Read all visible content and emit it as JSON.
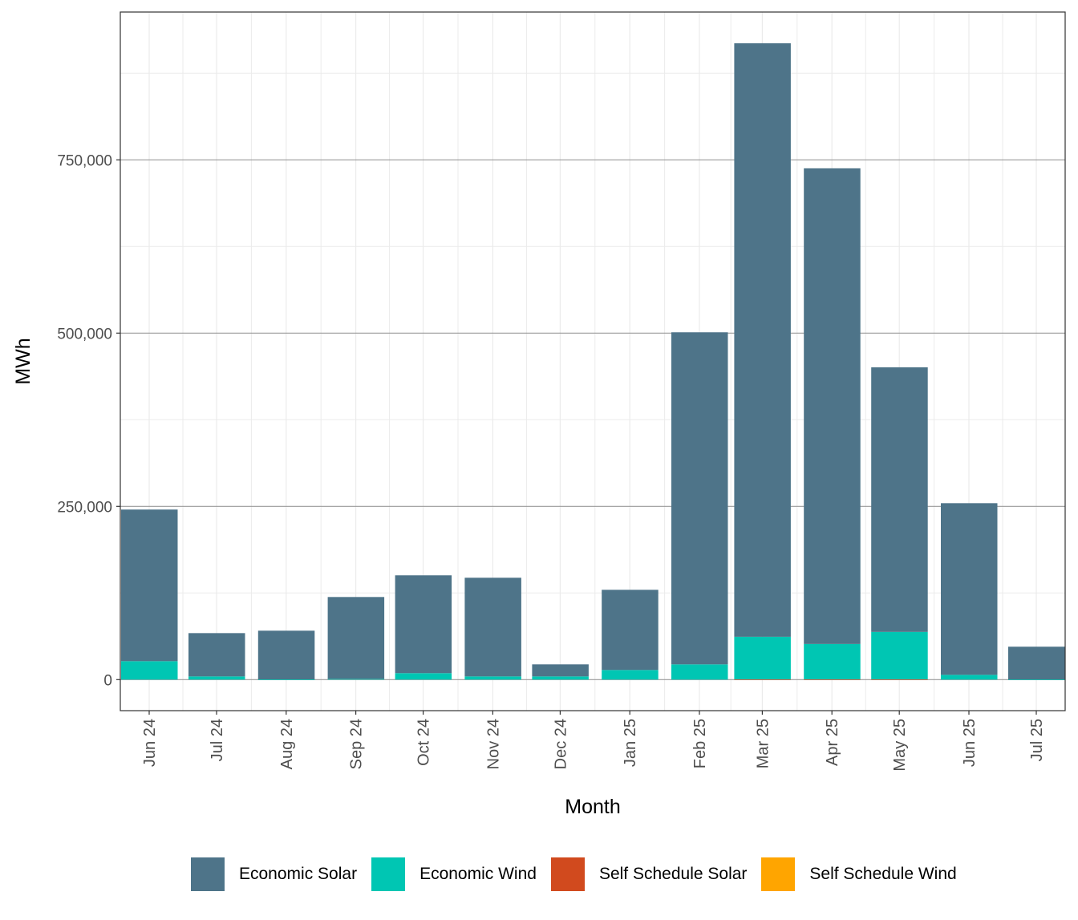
{
  "chart_data": {
    "type": "bar",
    "stacked": true,
    "xlabel": "Month",
    "ylabel": "MWh",
    "ylim": [
      -45000,
      965000
    ],
    "yticks": [
      0,
      250000,
      500000,
      750000
    ],
    "ytick_labels": [
      "0",
      "250,000",
      "500,000",
      "750,000"
    ],
    "grid": true,
    "legend_position": "bottom",
    "categories": [
      "Jun 24",
      "Jul 24",
      "Aug 24",
      "Sep 24",
      "Oct 24",
      "Nov 24",
      "Dec 24",
      "Jan 25",
      "Feb 25",
      "Mar 25",
      "Apr 25",
      "May 25",
      "Jun 25",
      "Jul 25"
    ],
    "series": [
      {
        "name": "Economic Solar",
        "color": "#4E7489",
        "values": [
          218800,
          62500,
          70300,
          118200,
          141200,
          142400,
          17400,
          115700,
          479200,
          856500,
          686400,
          381900,
          247700,
          47300
        ]
      },
      {
        "name": "Economic Wind",
        "color": "#00C6B3",
        "values": [
          26600,
          4600,
          300,
          1000,
          9300,
          4600,
          4600,
          13900,
          22000,
          61300,
          50900,
          68300,
          6900,
          200
        ]
      },
      {
        "name": "Self Schedule Solar",
        "color": "#D14A1E",
        "values": [
          0,
          0,
          0,
          0,
          0,
          0,
          0,
          0,
          0,
          500,
          500,
          500,
          0,
          0
        ]
      },
      {
        "name": "Self Schedule Wind",
        "color": "#FFA500",
        "values": [
          0,
          0,
          0,
          0,
          0,
          0,
          0,
          0,
          0,
          0,
          0,
          0,
          0,
          0
        ]
      }
    ]
  }
}
